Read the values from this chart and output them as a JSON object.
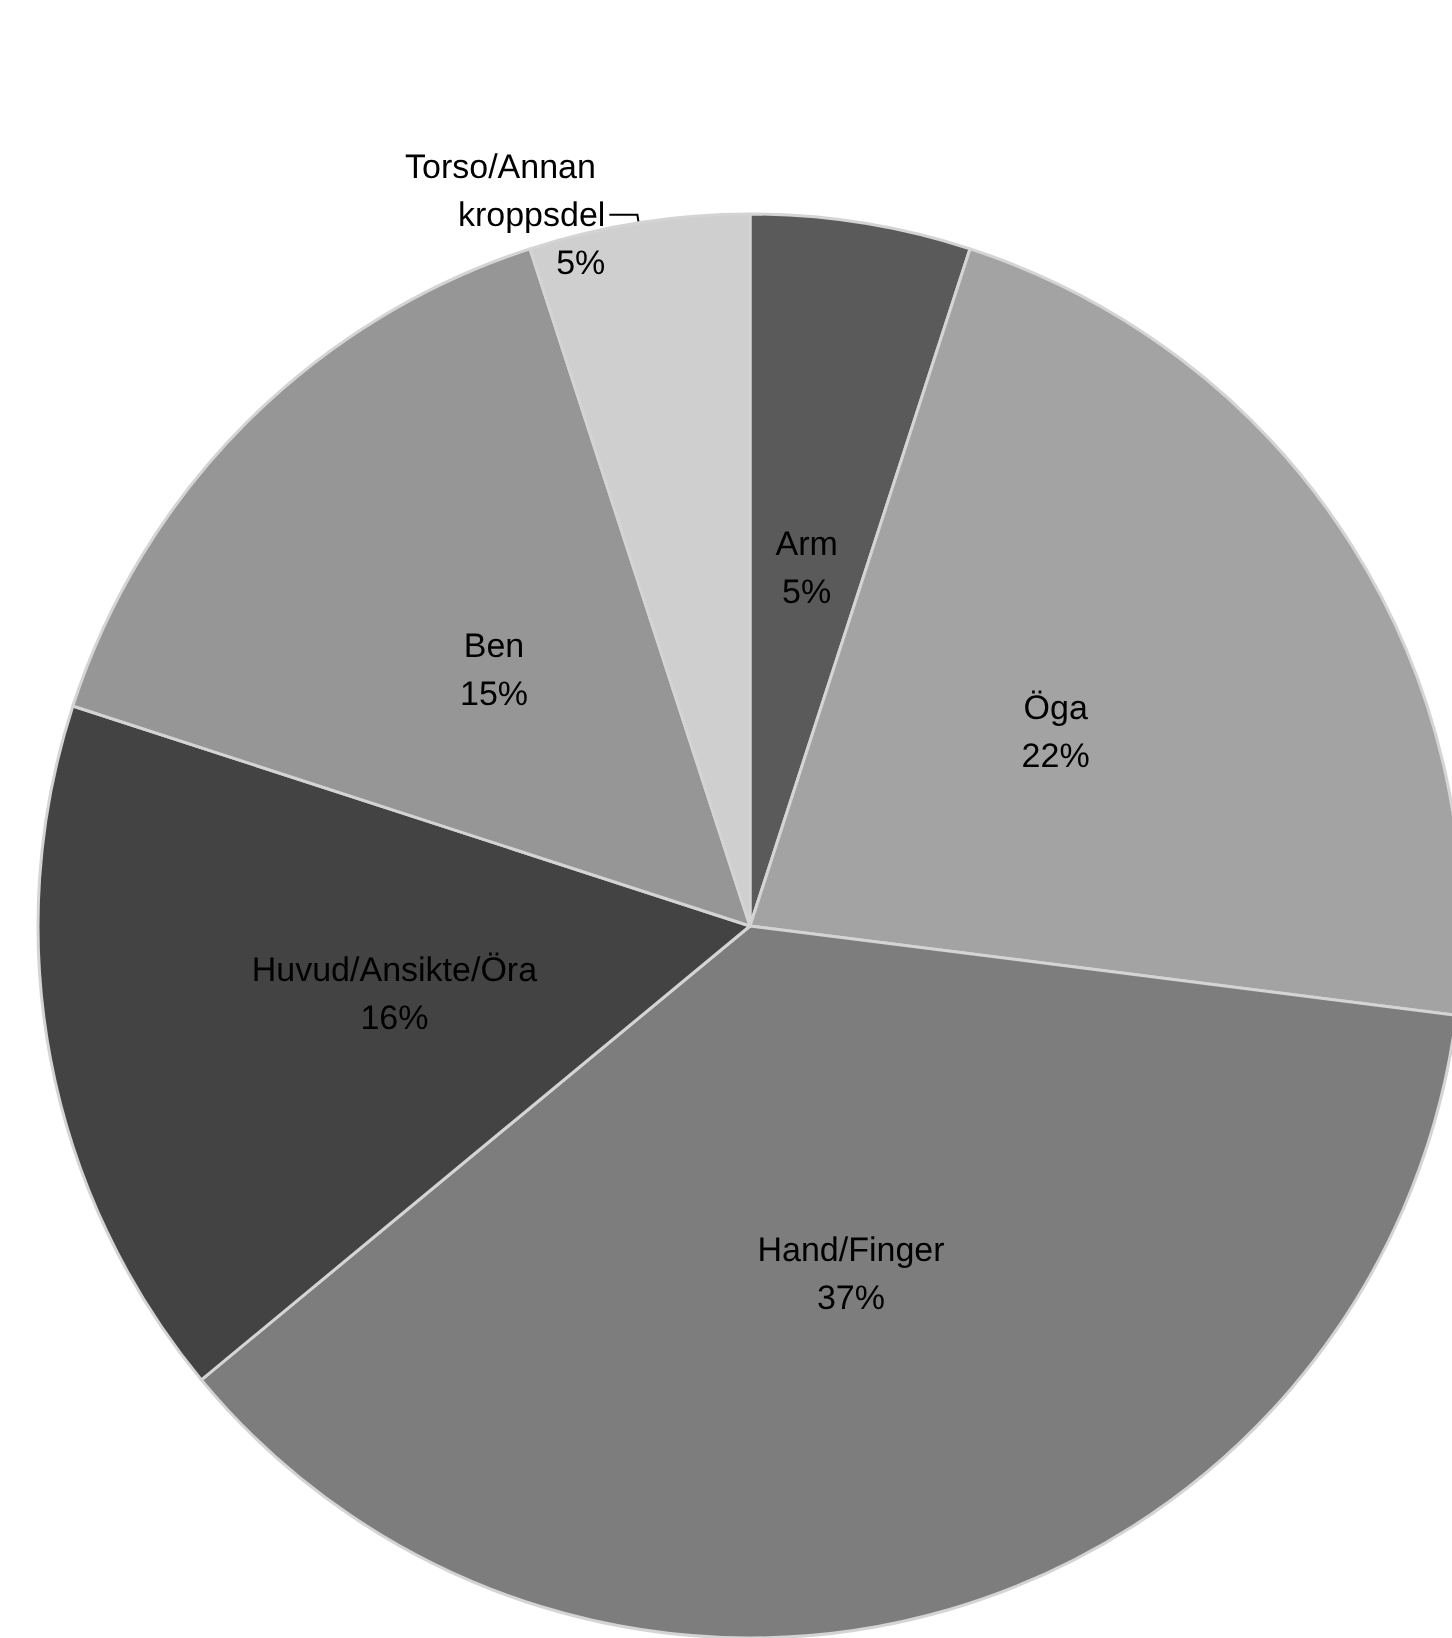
{
  "chart_data": {
    "type": "pie",
    "categories": [
      "Arm",
      "Öga",
      "Hand/Finger",
      "Huvud/Ansikte/Öra",
      "Ben",
      "Torso/Annan kroppsdel"
    ],
    "values": [
      5,
      22,
      37,
      16,
      15,
      5
    ],
    "colors": [
      "#5a5a5a",
      "#a3a3a3",
      "#7d7d7d",
      "#434343",
      "#969696",
      "#cfcfcf"
    ],
    "value_labels": [
      "5%",
      "22%",
      "37%",
      "16%",
      "15%",
      "5%"
    ],
    "legend": false
  }
}
